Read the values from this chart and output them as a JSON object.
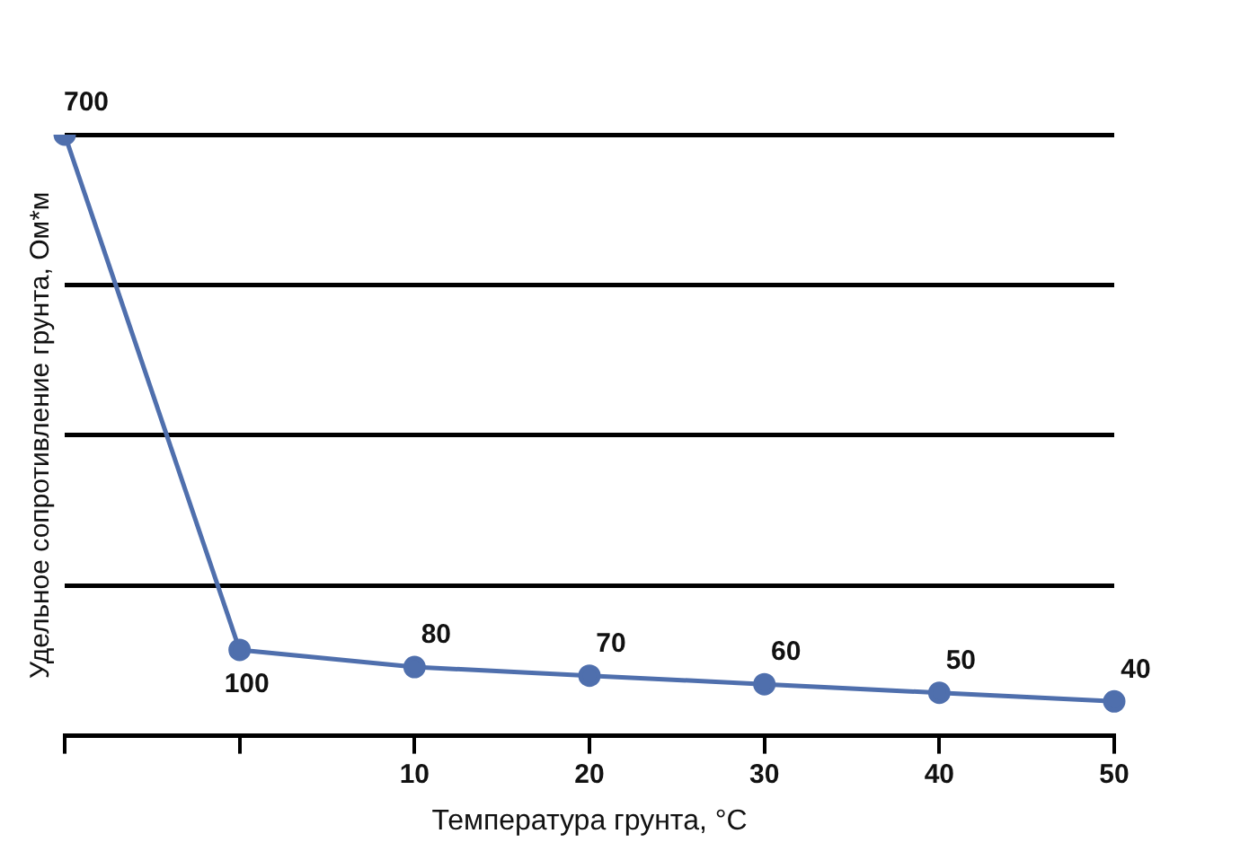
{
  "chart_data": {
    "type": "line",
    "xlabel": "Температура грунта, °C",
    "ylabel": "Удельное сопротивление грунта, Ом*м",
    "categories": [
      null,
      null,
      "10",
      "20",
      "30",
      "40",
      "50"
    ],
    "series": [
      {
        "color": "#4f6fad",
        "values": [
          700,
          100,
          80,
          70,
          60,
          50,
          40
        ]
      }
    ],
    "ylim": [
      0,
      700
    ],
    "yticks": [
      {
        "value": 0,
        "label": null
      },
      {
        "value": 175,
        "label": null
      },
      {
        "value": 350,
        "label": null
      },
      {
        "value": 525,
        "label": null
      },
      {
        "value": 700,
        "label": null
      }
    ],
    "tick_labels": "x",
    "grid": "y",
    "legend": false,
    "marker": "circle",
    "line_style": "solid",
    "data_labels": true
  }
}
